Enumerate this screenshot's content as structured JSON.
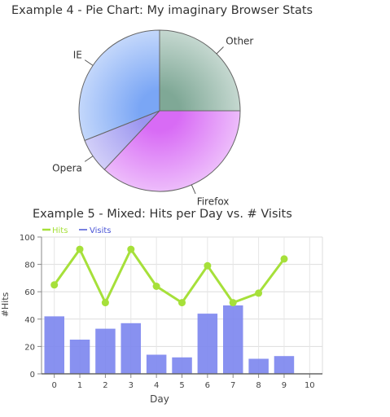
{
  "chart_data": [
    {
      "type": "pie",
      "title": "Example 4 - Pie Chart: My imaginary Browser Stats",
      "slices": [
        {
          "name": "Other",
          "value": 25,
          "color": "#7fa896"
        },
        {
          "name": "Firefox",
          "value": 37,
          "color": "#d86bf5"
        },
        {
          "name": "Opera",
          "value": 7,
          "color": "#9b95f0"
        },
        {
          "name": "IE",
          "value": 31,
          "color": "#7aa6f5"
        }
      ]
    },
    {
      "type": "bar+line",
      "title": "Example 5 - Mixed: Hits per Day vs. # Visits",
      "xlabel": "Day",
      "ylabel": "#Hits",
      "categories": [
        0,
        1,
        2,
        3,
        4,
        5,
        6,
        7,
        8,
        9,
        10
      ],
      "ylim": [
        0,
        100
      ],
      "yticks": [
        0,
        20,
        40,
        60,
        80,
        100
      ],
      "grid": true,
      "legend_position": "top-left",
      "series": [
        {
          "name": "Hits",
          "kind": "line",
          "color": "#a6e03a",
          "values": [
            65,
            91,
            52,
            91,
            64,
            52,
            79,
            52,
            59,
            84,
            null
          ]
        },
        {
          "name": "Visits",
          "kind": "bar",
          "color": "#7b85ee",
          "values": [
            42,
            25,
            33,
            37,
            14,
            12,
            44,
            50,
            11,
            13,
            null
          ]
        }
      ]
    }
  ]
}
